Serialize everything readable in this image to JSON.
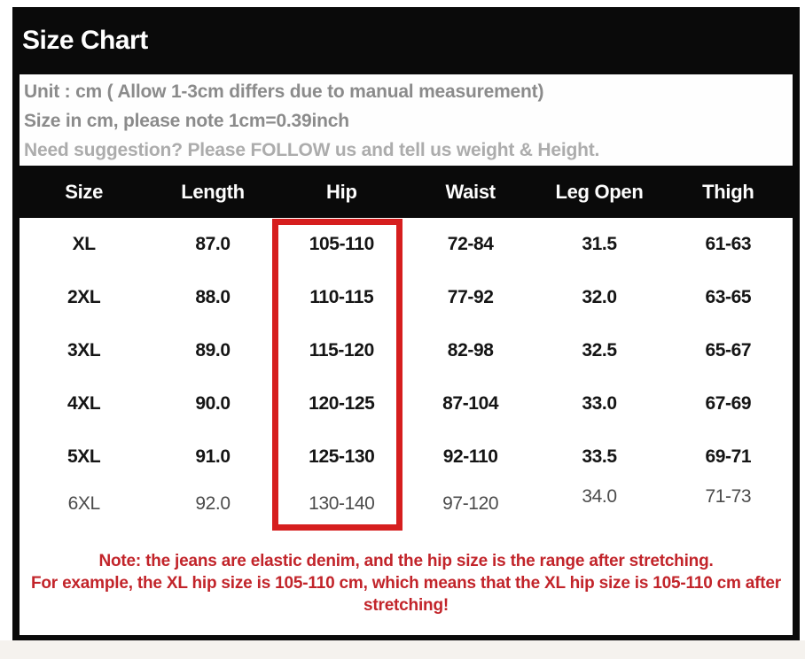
{
  "title": "Size Chart",
  "info": {
    "lines": [
      "Unit : cm ( Allow 1-3cm differs due to manual measurement)",
      "Size in cm, please note 1cm=0.39inch",
      "Need suggestion? Please FOLLOW us and tell us weight & Height."
    ]
  },
  "chart_data": {
    "type": "table",
    "title": "Size Chart",
    "columns": [
      "Size",
      "Length",
      "Hip",
      "Waist",
      "Leg Open",
      "Thigh"
    ],
    "rows": [
      {
        "muted": false,
        "cells": [
          "XL",
          "87.0",
          "105-110",
          "72-84",
          "31.5",
          "61-63"
        ]
      },
      {
        "muted": false,
        "cells": [
          "2XL",
          "88.0",
          "110-115",
          "77-92",
          "32.0",
          "63-65"
        ]
      },
      {
        "muted": false,
        "cells": [
          "3XL",
          "89.0",
          "115-120",
          "82-98",
          "32.5",
          "65-67"
        ]
      },
      {
        "muted": false,
        "cells": [
          "4XL",
          "90.0",
          "120-125",
          "87-104",
          "33.0",
          "67-69"
        ]
      },
      {
        "muted": false,
        "cells": [
          "5XL",
          "91.0",
          "125-130",
          "92-110",
          "33.5",
          "69-71"
        ]
      },
      {
        "muted": true,
        "cells": [
          "6XL",
          "92.0",
          "130-140",
          "97-120",
          "34.0",
          "71-73"
        ]
      }
    ],
    "highlight": {
      "column": "Hip",
      "style": "red-rectangle"
    }
  },
  "note": {
    "lines": [
      "Note: the jeans are elastic denim, and the hip size is the range after stretching.",
      "For example, the XL hip size is 105-110 cm, which means that the XL hip size is 105-110 cm after stretching!"
    ]
  },
  "colors": {
    "header_bg": "#0a0a0a",
    "header_text": "#fdfdfd",
    "info_text_gray": "#8b8b8b",
    "info_text_light_gray": "#acacac",
    "cell_text": "#151515",
    "muted_row_text": "#4b4b4b",
    "highlight_border_red": "#d61e1e",
    "note_red": "#c2242a"
  }
}
